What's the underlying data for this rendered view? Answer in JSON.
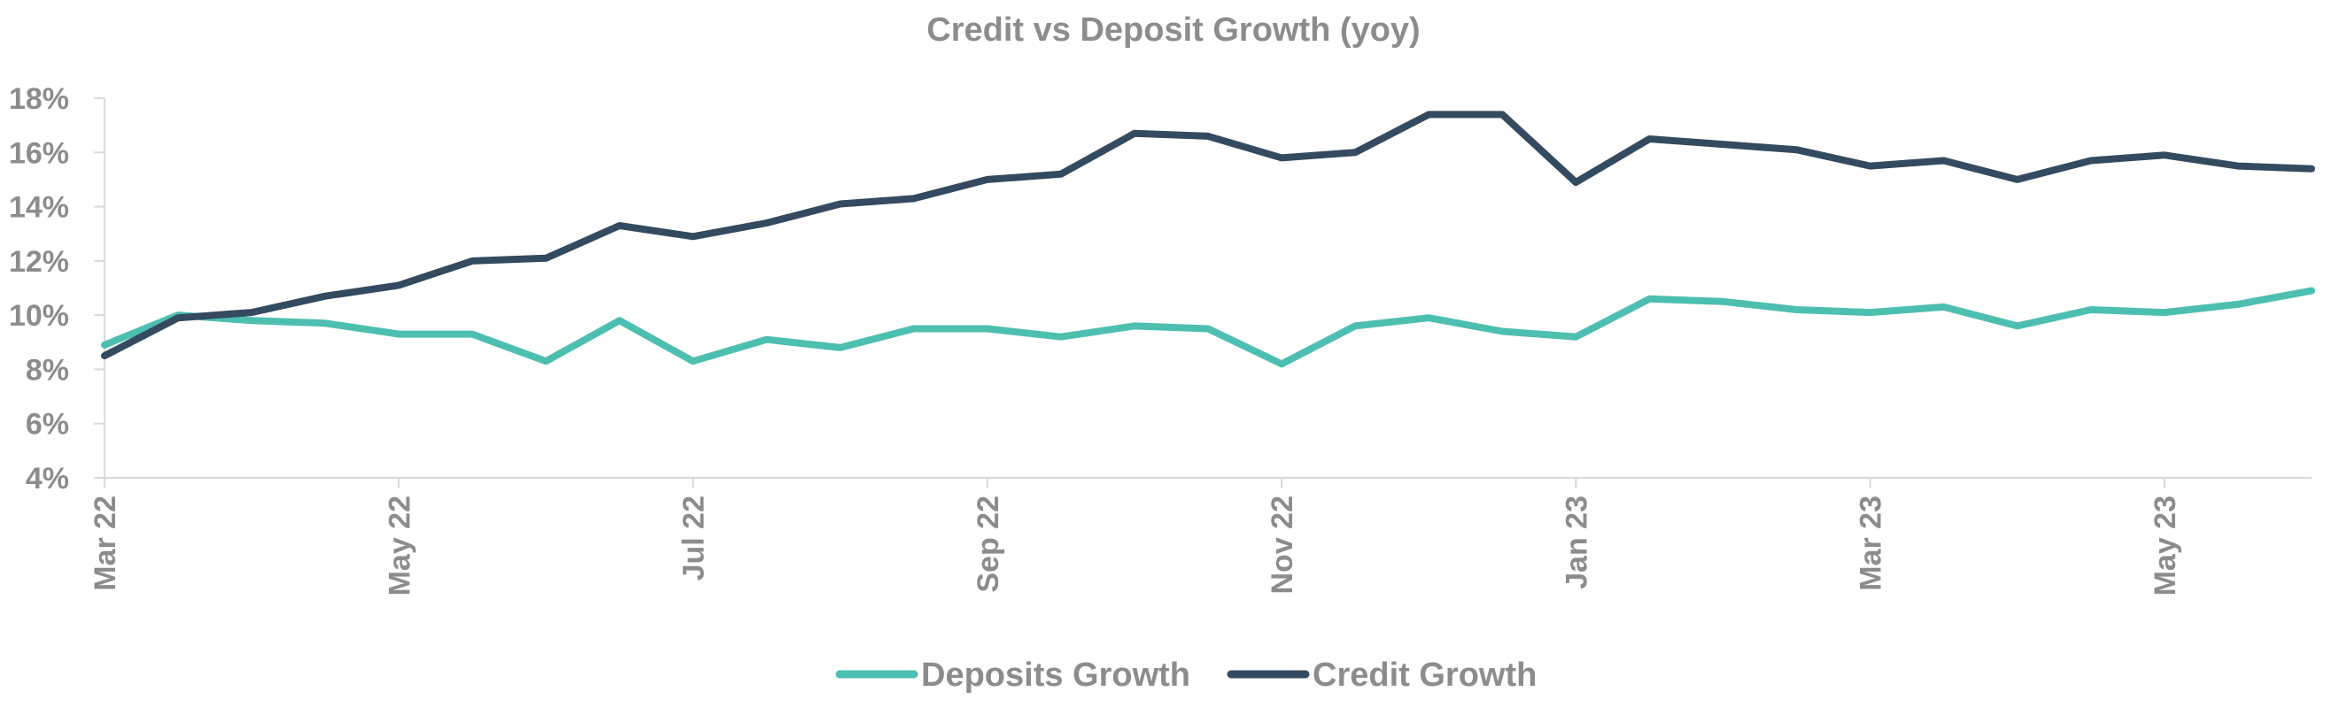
{
  "chart_data": {
    "type": "line",
    "title": "Credit vs Deposit Growth (yoy)",
    "x_tick_labels": [
      "Mar 22",
      "May 22",
      "Jul 22",
      "Sep 22",
      "Nov 22",
      "Jan 23",
      "Mar 23",
      "May 23"
    ],
    "ylim": [
      0.04,
      0.18
    ],
    "y_ticks": [
      0.04,
      0.06,
      0.08,
      0.1,
      0.12,
      0.14,
      0.16,
      0.18
    ],
    "y_tick_labels": [
      "4%",
      "6%",
      "8%",
      "10%",
      "12%",
      "14%",
      "16%",
      "18%"
    ],
    "grid": false,
    "legend_position": "bottom",
    "series": [
      {
        "name": "Deposits Growth",
        "color": "#4dbfb0",
        "values": [
          0.089,
          0.1,
          0.098,
          0.097,
          0.093,
          0.093,
          0.083,
          0.098,
          0.083,
          0.091,
          0.088,
          0.095,
          0.095,
          0.092,
          0.096,
          0.095,
          0.082,
          0.096,
          0.099,
          0.094,
          0.092,
          0.106,
          0.105,
          0.102,
          0.101,
          0.103,
          0.096,
          0.102,
          0.101,
          0.104,
          0.109
        ]
      },
      {
        "name": "Credit Growth",
        "color": "#344a5f",
        "values": [
          0.085,
          0.099,
          0.101,
          0.107,
          0.111,
          0.12,
          0.121,
          0.133,
          0.129,
          0.134,
          0.141,
          0.143,
          0.15,
          0.152,
          0.167,
          0.166,
          0.158,
          0.16,
          0.174,
          0.174,
          0.149,
          0.165,
          0.163,
          0.161,
          0.155,
          0.157,
          0.15,
          0.157,
          0.159,
          0.155,
          0.154
        ]
      }
    ]
  }
}
